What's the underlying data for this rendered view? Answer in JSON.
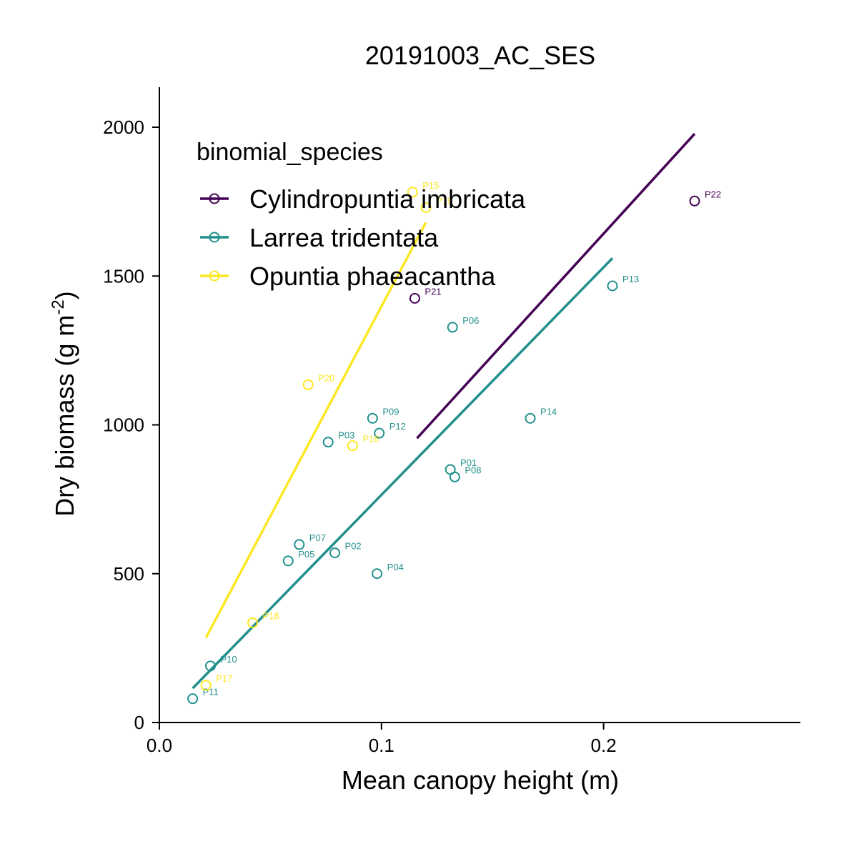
{
  "chart_data": {
    "type": "scatter",
    "title": "20191003_AC_SES",
    "xlabel": "Mean canopy height (m)",
    "ylabel_main": "Dry biomass (g m",
    "ylabel_sup": "-2",
    "ylabel_close": ")",
    "xlim": [
      0,
      0.29
    ],
    "ylim": [
      0,
      2130
    ],
    "x_ticks": [
      0.0,
      0.1,
      0.2
    ],
    "x_tick_labels": [
      "0.0",
      "0.1",
      "0.2"
    ],
    "y_ticks": [
      0,
      500,
      1000,
      1500,
      2000
    ],
    "y_tick_labels": [
      "0",
      "500",
      "1000",
      "1500",
      "2000"
    ],
    "grid": false,
    "legend": {
      "title": "binomial_species",
      "position": "top-left"
    },
    "series": [
      {
        "name": "Cylindropuntia imbricata",
        "color": "#440154",
        "points": [
          {
            "x": 0.115,
            "y": 1425,
            "label": "P21"
          },
          {
            "x": 0.241,
            "y": 1752,
            "label": "P22"
          }
        ],
        "fit": [
          [
            0.116,
            955
          ],
          [
            0.241,
            1978
          ]
        ]
      },
      {
        "name": "Larrea tridentata",
        "color": "#21908C",
        "points": [
          {
            "x": 0.131,
            "y": 850,
            "label": "P01"
          },
          {
            "x": 0.079,
            "y": 570,
            "label": "P02"
          },
          {
            "x": 0.076,
            "y": 942,
            "label": "P03"
          },
          {
            "x": 0.098,
            "y": 500,
            "label": "P04"
          },
          {
            "x": 0.058,
            "y": 543,
            "label": "P05"
          },
          {
            "x": 0.132,
            "y": 1328,
            "label": "P06"
          },
          {
            "x": 0.063,
            "y": 598,
            "label": "P07"
          },
          {
            "x": 0.133,
            "y": 825,
            "label": "P08"
          },
          {
            "x": 0.096,
            "y": 1022,
            "label": "P09"
          },
          {
            "x": 0.023,
            "y": 190,
            "label": "P10"
          },
          {
            "x": 0.015,
            "y": 80,
            "label": "P11"
          },
          {
            "x": 0.099,
            "y": 972,
            "label": "P12"
          },
          {
            "x": 0.204,
            "y": 1467,
            "label": "P13"
          },
          {
            "x": 0.167,
            "y": 1022,
            "label": "P14"
          }
        ],
        "fit": [
          [
            0.015,
            115
          ],
          [
            0.204,
            1560
          ]
        ]
      },
      {
        "name": "Opuntia phaeacantha",
        "color": "#FDE725",
        "points": [
          {
            "x": 0.114,
            "y": 1782,
            "label": "P15"
          },
          {
            "x": 0.087,
            "y": 930,
            "label": "P16"
          },
          {
            "x": 0.021,
            "y": 125,
            "label": "P17"
          },
          {
            "x": 0.042,
            "y": 335,
            "label": "P18"
          },
          {
            "x": 0.12,
            "y": 1730,
            "label": "P19"
          },
          {
            "x": 0.067,
            "y": 1135,
            "label": "P20"
          }
        ],
        "fit": [
          [
            0.021,
            285
          ],
          [
            0.12,
            1680
          ]
        ]
      }
    ]
  }
}
